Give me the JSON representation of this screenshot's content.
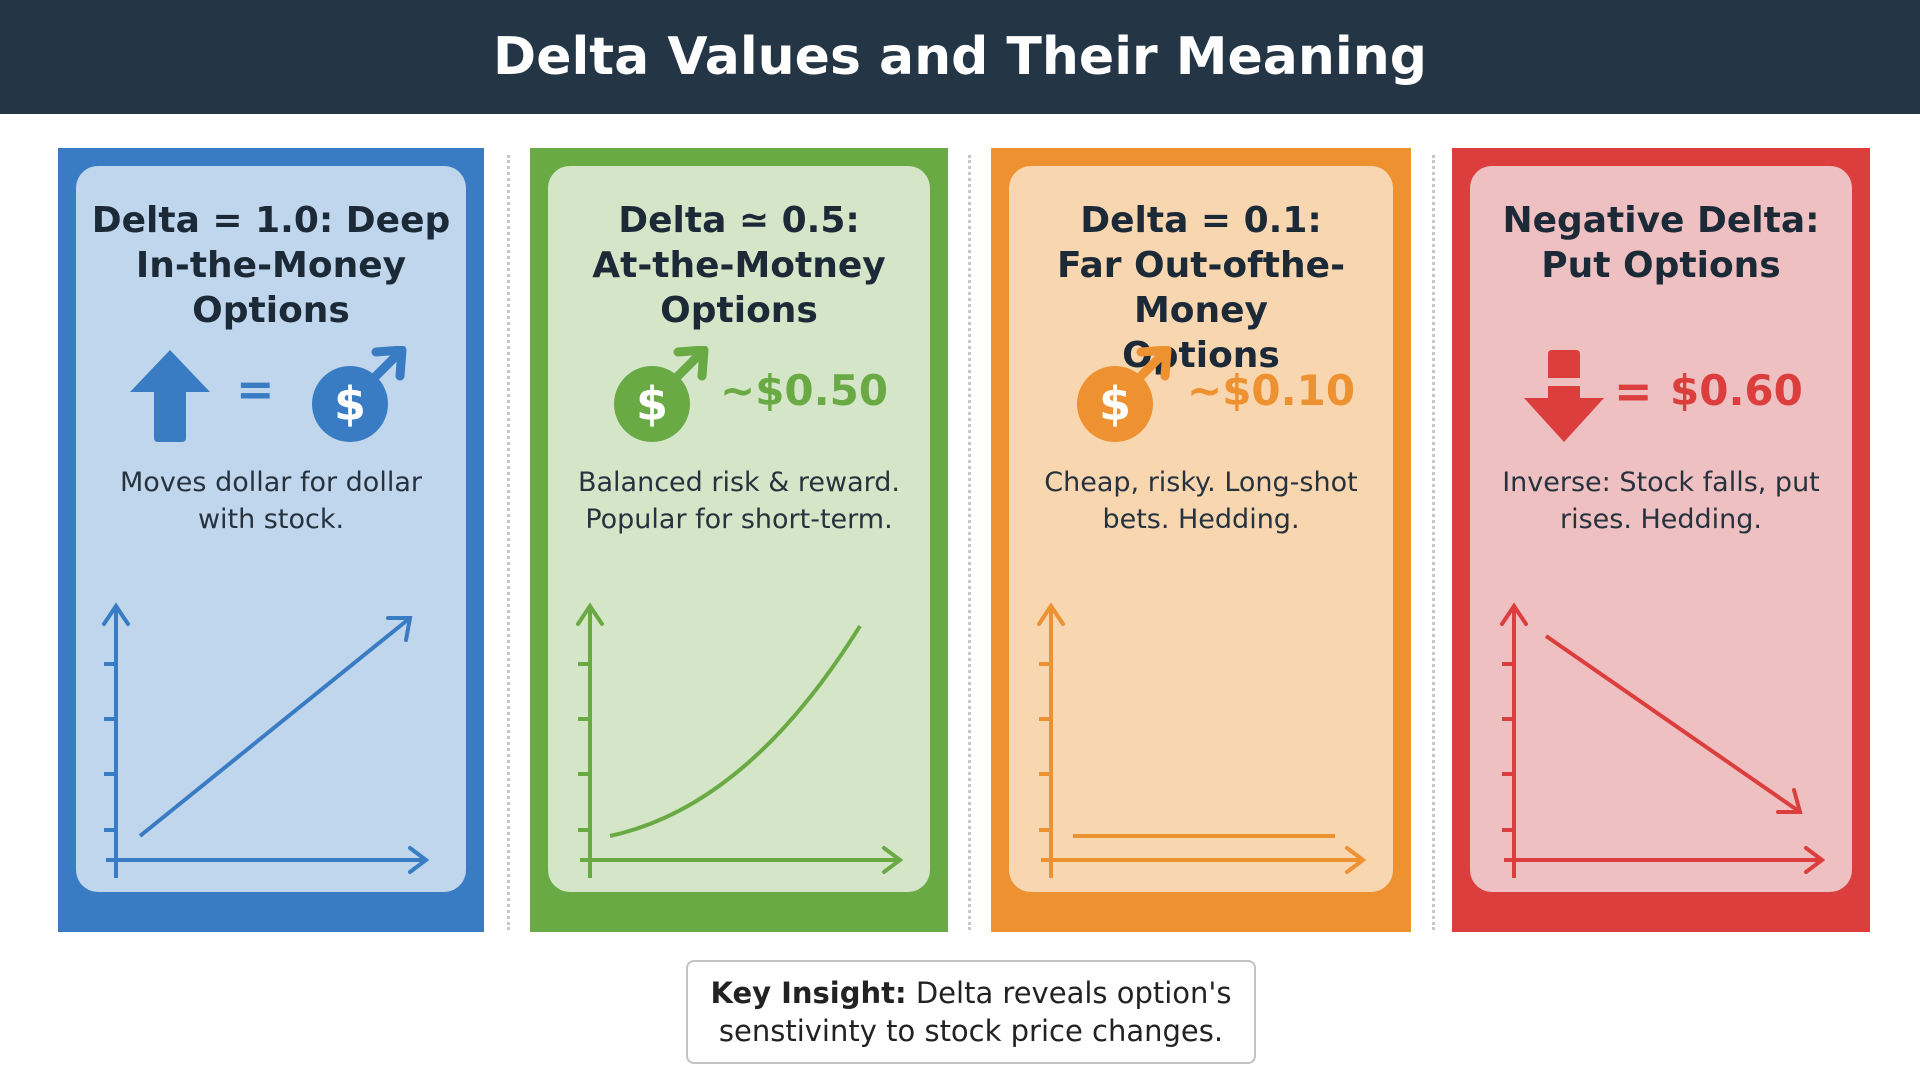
{
  "header": {
    "title": "Delta Values and Their Meaning"
  },
  "colors": {
    "header_bg": "#243646",
    "blue": "#3a7cc3",
    "blue_light": "#c0d6ec",
    "green": "#6aaa45",
    "green_light": "#d5e5c8",
    "orange": "#ee9130",
    "orange_light": "#f8d6b0",
    "red": "#dc3e3d",
    "red_light": "#efc0c1"
  },
  "cards": [
    {
      "title": "Delta = 1.0: Deep\nIn-the-Money\nOptions",
      "equals": "=",
      "value": "",
      "description": "Moves dollar for dollar\nwith stock.",
      "icons": [
        "arrow-up-icon",
        "dollar-coin-icon"
      ]
    },
    {
      "title": "Delta ≃ 0.5:\nAt-the-Motney\nOptions",
      "equals": "",
      "value": "~$0.50",
      "description": "Balanced risk & reward.\nPopular for short-term.",
      "icons": [
        "dollar-coin-icon"
      ]
    },
    {
      "title": "Delta = 0.1:\nFar Out-ofthe-Money\nOptions",
      "equals": "",
      "value": "~$0.10",
      "description": "Cheap, risky. Long-shot\nbets. Hedding.",
      "icons": [
        "dollar-coin-icon"
      ]
    },
    {
      "title": "Negative Delta:\nPut Options",
      "equals": "=",
      "value": "$0.60",
      "description": "Inverse: Stock falls, put\nrises. Hedding.",
      "icons": [
        "arrow-down-icon"
      ]
    }
  ],
  "insight": {
    "label": "Key Insight:",
    "text": " Delta reveals option's\nsenstivinty to stock price changes."
  }
}
